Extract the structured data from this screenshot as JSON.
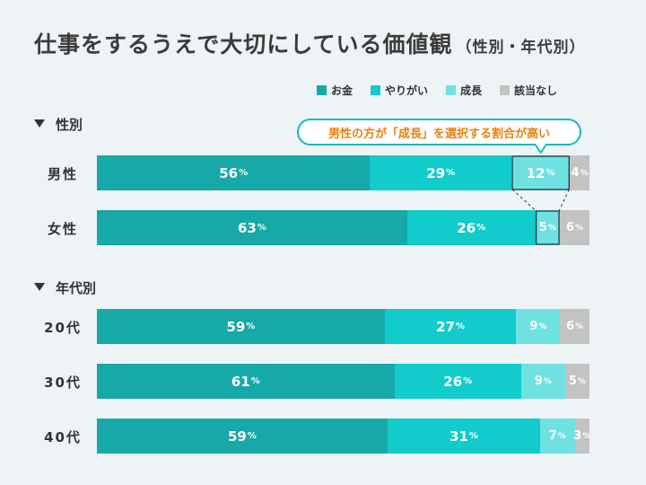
{
  "title": "仕事をするうえで大切にしている価値観",
  "subtitle": "（性別・年代別）",
  "callout": "男性の方が「成長」を選択する割合が高い",
  "pct_unit": "%",
  "colors": {
    "お金": "#17a8a8",
    "やりがい": "#12cccc",
    "成長": "#6fe1e1",
    "該当なし": "#c3c3c3"
  },
  "chart_data": {
    "type": "bar",
    "orientation": "horizontal-stacked-100",
    "legend_position": "top-right",
    "series_names": [
      "お金",
      "やりがい",
      "成長",
      "該当なし"
    ],
    "groups": [
      {
        "label": "性別",
        "rows": [
          {
            "label": "男性",
            "values": [
              56,
              29,
              12,
              4
            ]
          },
          {
            "label": "女性",
            "values": [
              63,
              26,
              5,
              6
            ]
          }
        ]
      },
      {
        "label": "年代別",
        "rows": [
          {
            "label": "20代",
            "values": [
              59,
              27,
              9,
              6
            ]
          },
          {
            "label": "30代",
            "values": [
              61,
              26,
              9,
              5
            ]
          },
          {
            "label": "40代",
            "values": [
              59,
              31,
              7,
              3
            ]
          }
        ]
      }
    ]
  }
}
